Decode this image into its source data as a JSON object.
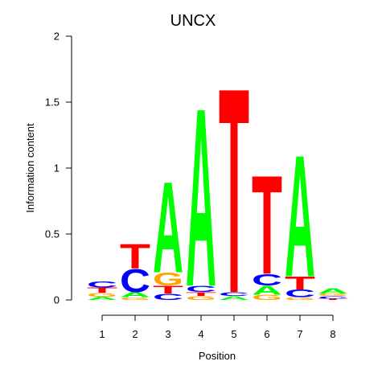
{
  "chart_data": {
    "type": "sequence-logo",
    "title": "UNCX",
    "xlabel": "Position",
    "ylabel": "Information content",
    "ylim": [
      0,
      2
    ],
    "yticks": [
      0,
      0.5,
      1,
      1.5,
      2
    ],
    "ytick_labels": [
      "0",
      "0.5",
      "1",
      "1.5",
      "2"
    ],
    "positions": [
      1,
      2,
      3,
      4,
      5,
      6,
      7,
      8
    ],
    "xtick_labels": [
      "1",
      "2",
      "3",
      "4",
      "5",
      "6",
      "7",
      "8"
    ],
    "colors": {
      "A": "#00ff00",
      "C": "#0000ff",
      "G": "#ffa500",
      "T": "#ff0000"
    },
    "stacks": [
      [
        {
          "letter": "A",
          "height": 0.025
        },
        {
          "letter": "G",
          "height": 0.03
        },
        {
          "letter": "T",
          "height": 0.04
        },
        {
          "letter": "C",
          "height": 0.05
        }
      ],
      [
        {
          "letter": "G",
          "height": 0.02
        },
        {
          "letter": "A",
          "height": 0.04
        },
        {
          "letter": "C",
          "height": 0.18
        },
        {
          "letter": "T",
          "height": 0.19
        }
      ],
      [
        {
          "letter": "C",
          "height": 0.05
        },
        {
          "letter": "T",
          "height": 0.06
        },
        {
          "letter": "G",
          "height": 0.1
        },
        {
          "letter": "A",
          "height": 0.71
        }
      ],
      [
        {
          "letter": "G",
          "height": 0.03
        },
        {
          "letter": "T",
          "height": 0.03
        },
        {
          "letter": "C",
          "height": 0.05
        },
        {
          "letter": "A",
          "height": 1.39
        }
      ],
      [
        {
          "letter": "A",
          "height": 0.03
        },
        {
          "letter": "C",
          "height": 0.03
        },
        {
          "letter": "T",
          "height": 1.6
        }
      ],
      [
        {
          "letter": "G",
          "height": 0.04
        },
        {
          "letter": "A",
          "height": 0.07
        },
        {
          "letter": "C",
          "height": 0.09
        },
        {
          "letter": "T",
          "height": 0.77
        }
      ],
      [
        {
          "letter": "G",
          "height": 0.02
        },
        {
          "letter": "C",
          "height": 0.06
        },
        {
          "letter": "T",
          "height": 0.1
        },
        {
          "letter": "A",
          "height": 0.95
        }
      ],
      [
        {
          "letter": "T",
          "height": 0.01
        },
        {
          "letter": "C",
          "height": 0.02
        },
        {
          "letter": "G",
          "height": 0.02
        },
        {
          "letter": "A",
          "height": 0.04
        }
      ]
    ]
  }
}
